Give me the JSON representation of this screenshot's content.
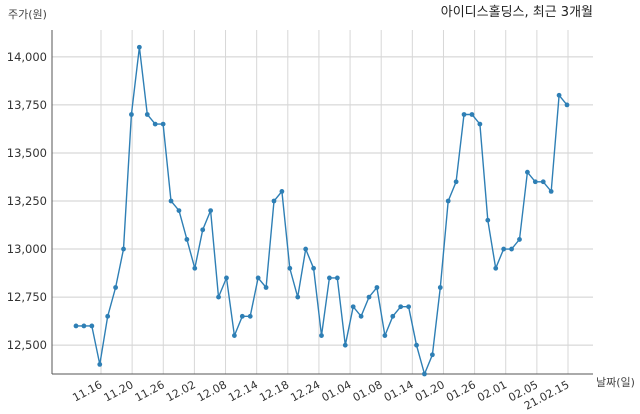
{
  "chart_data": {
    "type": "line",
    "title": "아이디스홀딩스, 최근 3개월",
    "xlabel": "날짜(일)",
    "ylabel": "주가(원)",
    "ylim": [
      12350,
      14150
    ],
    "yticks": [
      12500,
      12750,
      13000,
      13250,
      13500,
      13750,
      14000
    ],
    "ytick_labels": [
      "12,500",
      "12,750",
      "13,000",
      "13,250",
      "13,500",
      "13,750",
      "14,000"
    ],
    "xtick_labels": [
      "11.16",
      "11.20",
      "11.26",
      "12.02",
      "12.08",
      "12.14",
      "12.18",
      "12.24",
      "01.04",
      "01.08",
      "01.14",
      "01.20",
      "01.26",
      "02.01",
      "02.05",
      "21.02.15"
    ],
    "grid": true,
    "line_color": "#2e7fb5",
    "series": [
      {
        "values": [
          12600,
          12600,
          12600,
          12400,
          12650,
          12800,
          13000,
          13700,
          14050,
          13700,
          13650,
          13650,
          13250,
          13200,
          13050,
          12900,
          13100,
          13200,
          12750,
          12850,
          12550,
          12650,
          12650,
          12850,
          12800,
          13250,
          13300,
          12900,
          12750,
          13000,
          12900,
          12550,
          12850,
          12850,
          12500,
          12700,
          12650,
          12750,
          12800,
          12550,
          12650,
          12700,
          12700,
          12500,
          12350,
          12450,
          12800,
          13250,
          13350,
          13700,
          13700,
          13650,
          13150,
          12900,
          13000,
          13000,
          13050,
          13400,
          13350,
          13350,
          13300,
          13800,
          13750
        ]
      }
    ]
  }
}
